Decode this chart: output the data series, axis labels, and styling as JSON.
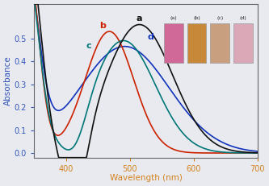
{
  "xlim": [
    350,
    700
  ],
  "ylim": [
    -0.02,
    0.65
  ],
  "xlabel": "Wavelength (nm)",
  "ylabel": "Absorbance",
  "xlabel_color": "#d4821e",
  "ylabel_color": "#3355bb",
  "tick_color_x": "#d4821e",
  "tick_color_y": "#3355bb",
  "bg_color": "#e8eaf0",
  "curve_a_color": "#111111",
  "curve_b_color": "#cc2200",
  "curve_c_color": "#007777",
  "curve_d_color": "#1133bb",
  "label_a": "a",
  "label_b": "b",
  "label_c": "c",
  "label_d": "d",
  "inset_colors": [
    "#d06898",
    "#c8883a",
    "#c8a080",
    "#dba8b8"
  ],
  "inset_labels": [
    "(a)",
    "(b)",
    "(c)",
    "(d)"
  ],
  "xticks": [
    400,
    500,
    600,
    700
  ],
  "yticks": [
    0.0,
    0.1,
    0.2,
    0.3,
    0.4,
    0.5
  ]
}
